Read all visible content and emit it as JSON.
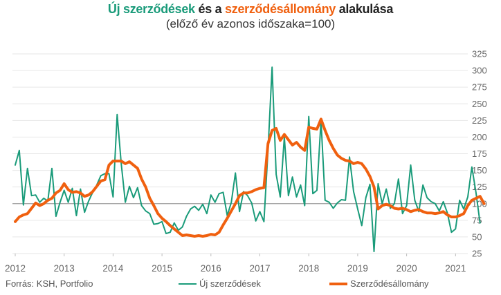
{
  "title": {
    "part1": "Új szerződések",
    "part2": " és a ",
    "part3": "szerződésállomány",
    "part4": " alakulása"
  },
  "subtitle": "(előző év azonos időszaka=100)",
  "source": "Forrás: KSH, Portfolio",
  "colors": {
    "new_contracts": "#1a9b7a",
    "stock": "#f0600f",
    "grid": "#e6e6e6",
    "baseline": "#999999"
  },
  "chart_data": {
    "type": "line",
    "ylim": [
      25,
      325
    ],
    "yticks": [
      25,
      50,
      75,
      100,
      125,
      150,
      175,
      200,
      225,
      250,
      275,
      300,
      325
    ],
    "xlim": [
      2012.0,
      2021.25
    ],
    "xticks": [
      "2012",
      "2013",
      "2014",
      "2015",
      "2016",
      "2017",
      "2018",
      "2019",
      "2020",
      "2021"
    ],
    "baseline": 100,
    "grid": "horizontal",
    "legend_position": "bottom",
    "x_start": "2012-01",
    "x_step": "month",
    "series": [
      {
        "name": "Új szerződések",
        "color": "#1a9b7a",
        "values": [
          158,
          180,
          98,
          153,
          112,
          113,
          102,
          108,
          104,
          153,
          81,
          102,
          120,
          102,
          123,
          82,
          122,
          87,
          104,
          117,
          128,
          142,
          145,
          145,
          110,
          234,
          160,
          102,
          126,
          109,
          124,
          97,
          89,
          85,
          69,
          70,
          73,
          55,
          57,
          71,
          60,
          65,
          81,
          92,
          96,
          90,
          99,
          85,
          113,
          102,
          115,
          117,
          82,
          102,
          146,
          88,
          118,
          112,
          101,
          74,
          88,
          73,
          180,
          305,
          144,
          110,
          200,
          112,
          140,
          110,
          128,
          97,
          231,
          115,
          120,
          225,
          105,
          102,
          93,
          101,
          106,
          105,
          170,
          118,
          92,
          67,
          109,
          129,
          28,
          130,
          100,
          122,
          93,
          100,
          137,
          85,
          97,
          158,
          105,
          88,
          128,
          109,
          103,
          100,
          89,
          103,
          86,
          57,
          62,
          105,
          92,
          110,
          155,
          117,
          71
        ]
      },
      {
        "name": "Szerződésállomány",
        "color": "#f0600f",
        "values": [
          73,
          80,
          83,
          85,
          93,
          101,
          97,
          100,
          105,
          108,
          116,
          120,
          130,
          121,
          117,
          118,
          116,
          111,
          113,
          118,
          126,
          134,
          136,
          158,
          164,
          164,
          164,
          160,
          163,
          158,
          153,
          137,
          125,
          108,
          97,
          85,
          78,
          73,
          67,
          62,
          57,
          52,
          53,
          52,
          51,
          52,
          51,
          52,
          54,
          53,
          57,
          68,
          78,
          89,
          100,
          112,
          116,
          116,
          118,
          121,
          123,
          124,
          190,
          210,
          213,
          195,
          204,
          196,
          188,
          192,
          185,
          180,
          215,
          213,
          212,
          227,
          210,
          195,
          183,
          173,
          168,
          165,
          164,
          160,
          162,
          160,
          152,
          141,
          125,
          92,
          97,
          99,
          97,
          93,
          92,
          93,
          91,
          88,
          90,
          91,
          88,
          86,
          86,
          85,
          86,
          88,
          83,
          80,
          80,
          82,
          85,
          97,
          105,
          108,
          111,
          100
        ]
      }
    ]
  }
}
